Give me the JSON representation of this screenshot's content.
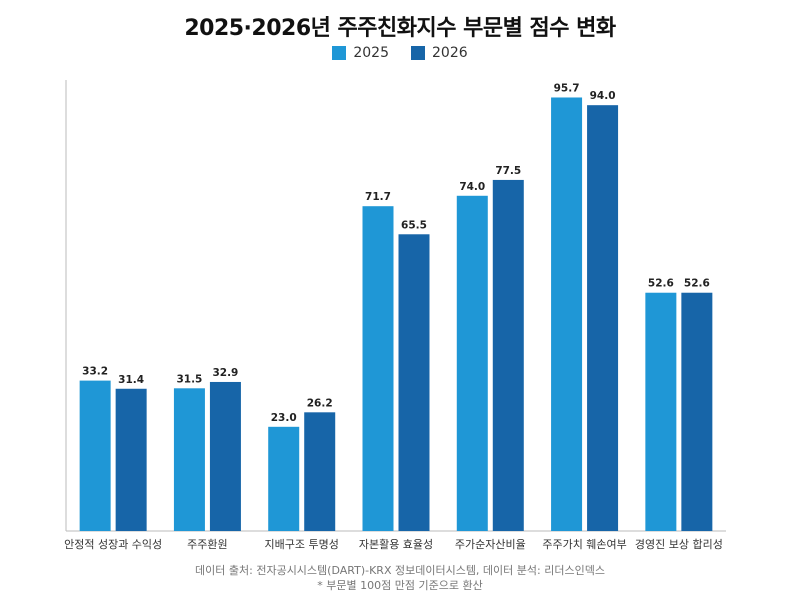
{
  "title": "2025·2026년 주주친화지수 부문별 점수 변화",
  "legend": [
    {
      "label": "2025",
      "color": "#1f97d6"
    },
    {
      "label": "2026",
      "color": "#1765a8"
    }
  ],
  "chart_data": {
    "type": "bar",
    "title": "2025·2026년 주주친화지수 부문별 점수 변화",
    "categories": [
      "안정적 성장과 수익성",
      "주주환원",
      "지배구조 투명성",
      "자본활용 효율성",
      "주가순자산비율",
      "주주가치 훼손여부",
      "경영진 보상 합리성"
    ],
    "series": [
      {
        "name": "2025",
        "values": [
          33.2,
          31.5,
          23.0,
          71.7,
          74.0,
          95.7,
          52.6
        ],
        "labels": [
          "33.2",
          "31.5",
          "23.0",
          "71.7",
          "74.0",
          "95.7",
          "52.6"
        ],
        "color": "#1f97d6"
      },
      {
        "name": "2026",
        "values": [
          31.4,
          32.9,
          26.2,
          65.5,
          77.5,
          94.0,
          52.6
        ],
        "labels": [
          "31.4",
          "32.9",
          "26.2",
          "65.5",
          "77.5",
          "94.0",
          "52.6"
        ],
        "color": "#1765a8"
      }
    ],
    "ylim": [
      0,
      100
    ],
    "grid": false,
    "legend_position": "top-center"
  },
  "footer": {
    "source": "데이터 출처: 전자공시시스템(DART)-KRX 정보데이터시스템, 데이터 분석: 리더스인덱스",
    "note": "* 부문별 100점 만점 기준으로 환산"
  }
}
